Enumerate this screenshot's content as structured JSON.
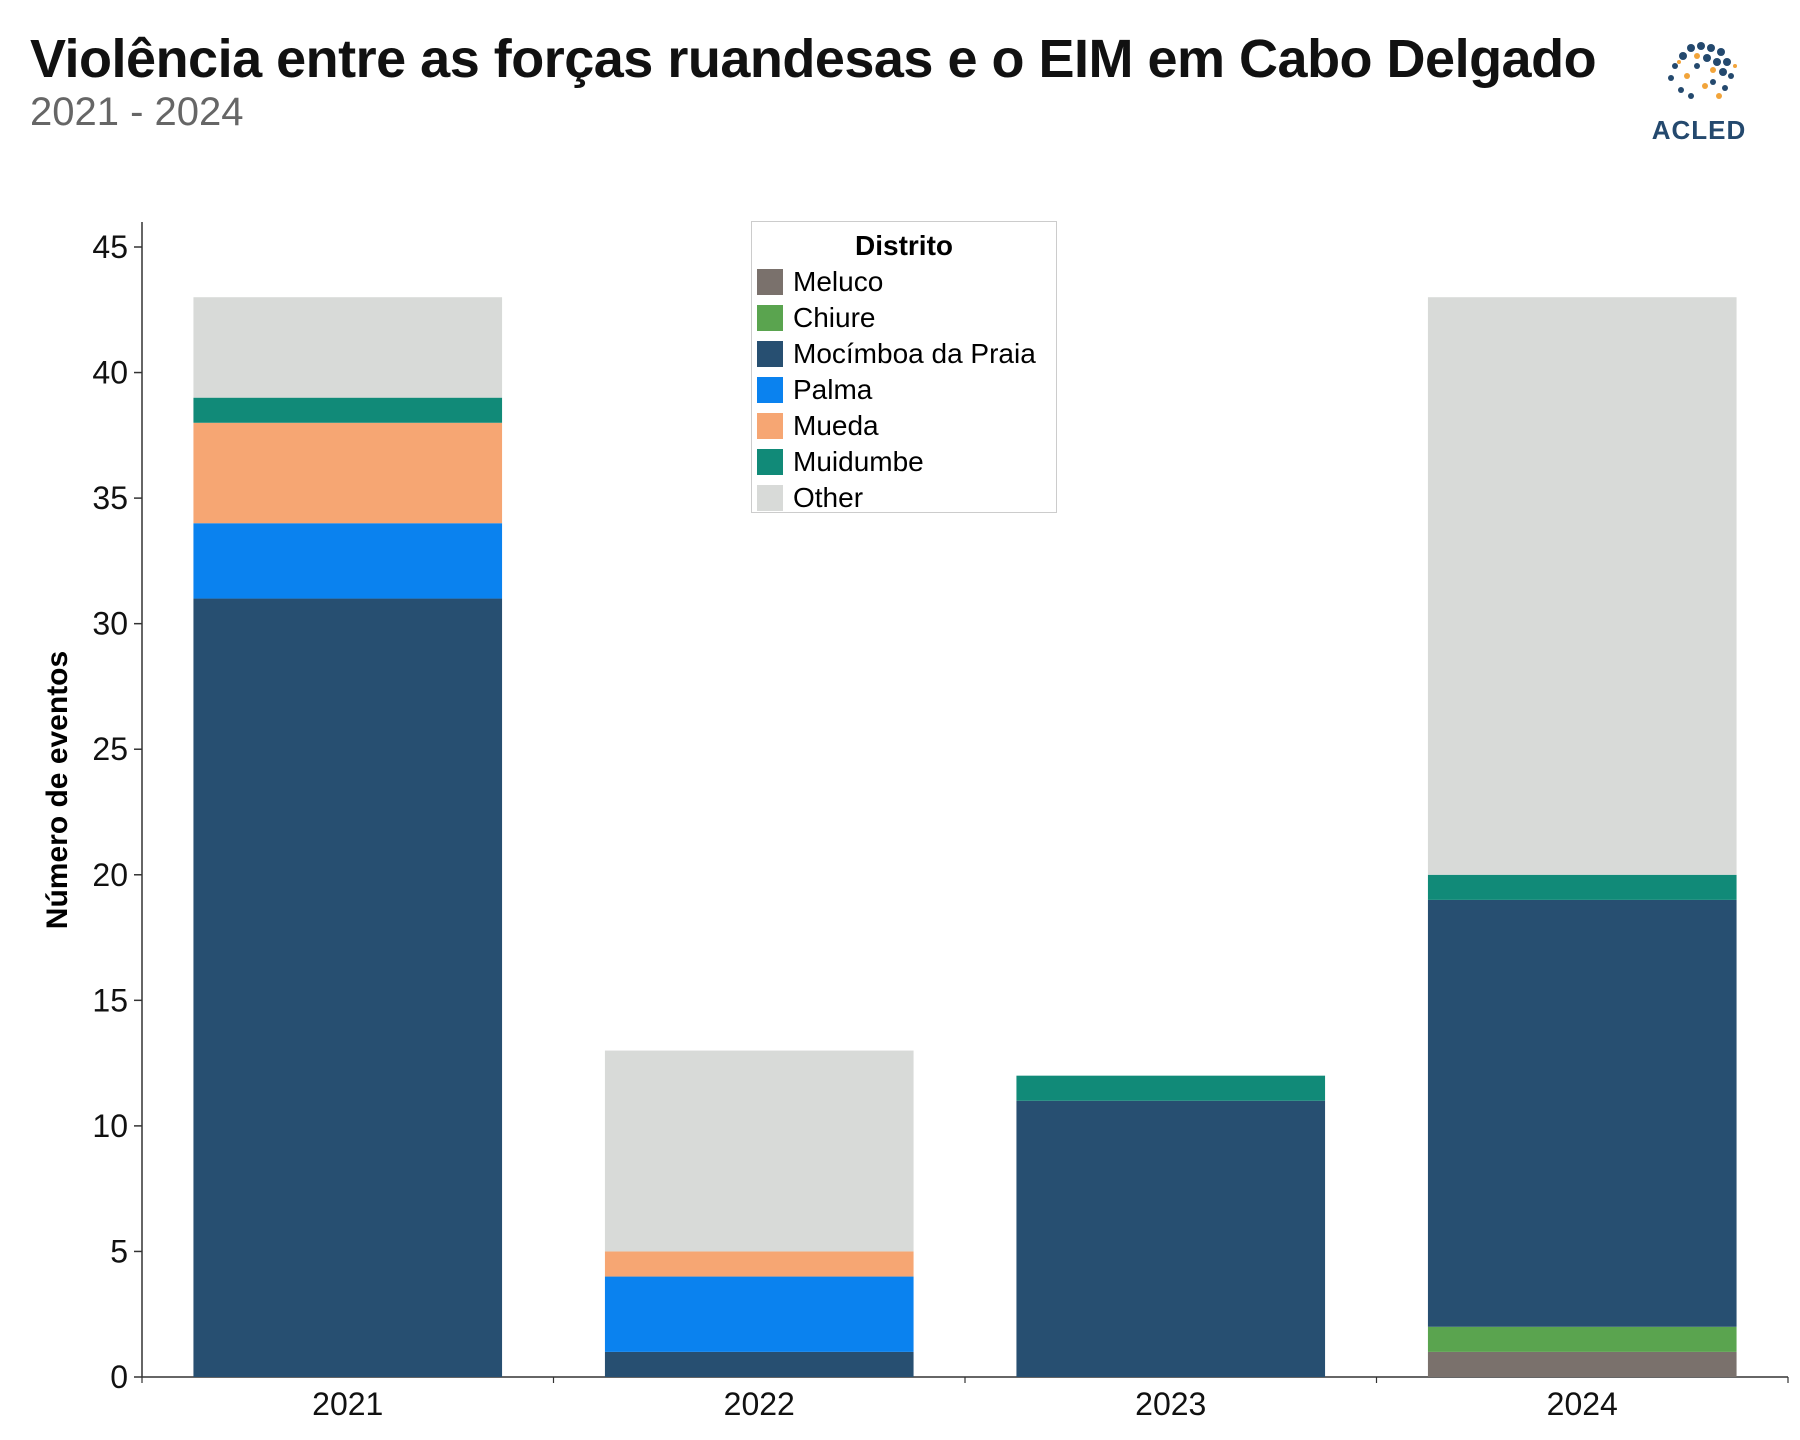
{
  "header": {
    "title": "Violência entre as forças ruandesas e o EIM em Cabo Delgado",
    "subtitle": "2021 - 2024",
    "logo_text": "ACLED"
  },
  "chart_data": {
    "type": "bar",
    "stacked": true,
    "categories": [
      "2021",
      "2022",
      "2023",
      "2024"
    ],
    "ylabel": "Número de eventos",
    "xlabel": "",
    "ylim": [
      0,
      45
    ],
    "yticks": [
      0,
      5,
      10,
      15,
      20,
      25,
      30,
      35,
      40,
      45
    ],
    "grid": false,
    "legend": {
      "title": "Distrito",
      "placement": "top-center"
    },
    "series": [
      {
        "name": "Meluco",
        "color": "#7a716c",
        "values": [
          0,
          0,
          0,
          1
        ]
      },
      {
        "name": "Chiure",
        "color": "#5aa44f",
        "values": [
          0,
          0,
          0,
          1
        ]
      },
      {
        "name": "Mocímboa da Praia",
        "color": "#274f71",
        "values": [
          31,
          1,
          11,
          17
        ]
      },
      {
        "name": "Palma",
        "color": "#0a82ef",
        "values": [
          3,
          3,
          0,
          0
        ]
      },
      {
        "name": "Mueda",
        "color": "#f6a673",
        "values": [
          4,
          1,
          0,
          0
        ]
      },
      {
        "name": "Muidumbe",
        "color": "#118a78",
        "values": [
          1,
          0,
          1,
          1
        ]
      },
      {
        "name": "Other",
        "color": "#d8dad8",
        "values": [
          4,
          8,
          0,
          23
        ]
      }
    ]
  }
}
